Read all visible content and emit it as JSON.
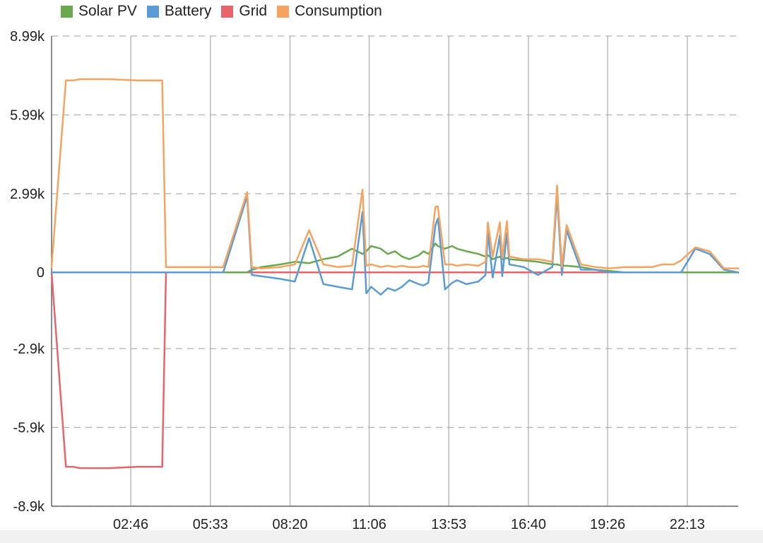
{
  "chart_data": {
    "type": "line",
    "title": "",
    "xlabel": "",
    "ylabel": "",
    "legend_position": "top-left",
    "grid": {
      "horizontal": "dashed",
      "vertical": "solid"
    },
    "ylim": [
      -8900,
      8990
    ],
    "y_ticks": [
      {
        "value": 8990,
        "label": "8.99k"
      },
      {
        "value": 5990,
        "label": "5.99k"
      },
      {
        "value": 2990,
        "label": "2.99k"
      },
      {
        "value": 0,
        "label": "0"
      },
      {
        "value": -2900,
        "label": "-2.9k"
      },
      {
        "value": -5900,
        "label": "-5.9k"
      },
      {
        "value": -8900,
        "label": "-8.9k"
      }
    ],
    "xlim": [
      "00:00",
      "24:00"
    ],
    "x_ticks": [
      "02:46",
      "05:33",
      "08:20",
      "11:06",
      "13:53",
      "16:40",
      "19:26",
      "22:13"
    ],
    "x": [
      "00:00",
      "00:30",
      "00:45",
      "01:00",
      "02:00",
      "03:00",
      "03:45",
      "03:52",
      "04:00",
      "05:00",
      "06:00",
      "06:50",
      "07:00",
      "07:20",
      "08:00",
      "08:30",
      "09:00",
      "09:30",
      "10:00",
      "10:30",
      "10:52",
      "11:00",
      "11:10",
      "11:30",
      "11:45",
      "12:00",
      "12:15",
      "12:30",
      "12:50",
      "13:00",
      "13:10",
      "13:25",
      "13:30",
      "13:45",
      "14:00",
      "14:10",
      "14:30",
      "14:55",
      "15:10",
      "15:15",
      "15:25",
      "15:40",
      "15:45",
      "15:55",
      "16:00",
      "16:30",
      "17:00",
      "17:30",
      "17:40",
      "17:50",
      "18:00",
      "18:30",
      "19:00",
      "19:30",
      "20:00",
      "21:00",
      "21:20",
      "21:45",
      "22:00",
      "22:30",
      "23:00",
      "23:30",
      "24:00"
    ],
    "series": [
      {
        "name": "Solar PV",
        "color": "#6aa84f",
        "values": [
          0,
          0,
          0,
          0,
          0,
          0,
          0,
          0,
          0,
          0,
          0,
          0,
          100,
          200,
          300,
          400,
          350,
          500,
          600,
          900,
          700,
          800,
          1000,
          900,
          700,
          800,
          600,
          500,
          650,
          800,
          700,
          1100,
          1000,
          900,
          1000,
          900,
          800,
          700,
          600,
          650,
          500,
          600,
          500,
          550,
          500,
          450,
          400,
          300,
          300,
          250,
          250,
          200,
          100,
          50,
          0,
          0,
          0,
          0,
          0,
          0,
          0,
          0,
          0
        ]
      },
      {
        "name": "Battery",
        "color": "#5b9bd5",
        "values": [
          0,
          0,
          0,
          0,
          0,
          0,
          0,
          0,
          0,
          0,
          0,
          2900,
          -100,
          -150,
          -250,
          -350,
          1300,
          -450,
          -550,
          -650,
          2300,
          -800,
          -550,
          -850,
          -600,
          -700,
          -550,
          -300,
          -450,
          -500,
          -400,
          1800,
          2050,
          -650,
          -400,
          -300,
          -450,
          -350,
          -100,
          1500,
          -200,
          1400,
          -150,
          1500,
          300,
          200,
          -100,
          200,
          2950,
          -100,
          1600,
          100,
          100,
          0,
          0,
          0,
          0,
          0,
          0,
          900,
          700,
          100,
          0
        ]
      },
      {
        "name": "Grid",
        "color": "#e8646b",
        "values": [
          0,
          -7400,
          -7400,
          -7450,
          -7450,
          -7400,
          -7400,
          -7400,
          0,
          0,
          0,
          0,
          0,
          0,
          0,
          0,
          0,
          0,
          0,
          0,
          0,
          0,
          0,
          0,
          0,
          0,
          0,
          0,
          0,
          0,
          0,
          0,
          0,
          0,
          0,
          0,
          0,
          0,
          0,
          0,
          0,
          0,
          0,
          0,
          0,
          0,
          0,
          0,
          0,
          0,
          0,
          0,
          0,
          0,
          0,
          0,
          0,
          0,
          0,
          0,
          0,
          0,
          0
        ]
      },
      {
        "name": "Consumption",
        "color": "#f4a460",
        "values": [
          200,
          7300,
          7300,
          7350,
          7350,
          7300,
          7300,
          7300,
          200,
          200,
          200,
          3050,
          200,
          150,
          200,
          300,
          1600,
          300,
          200,
          250,
          3150,
          250,
          300,
          200,
          250,
          200,
          250,
          200,
          200,
          250,
          200,
          2500,
          2500,
          300,
          300,
          250,
          300,
          250,
          400,
          1900,
          600,
          1900,
          550,
          1950,
          600,
          500,
          500,
          400,
          3300,
          200,
          1800,
          300,
          200,
          150,
          200,
          200,
          300,
          300,
          450,
          950,
          800,
          150,
          150
        ]
      }
    ]
  }
}
